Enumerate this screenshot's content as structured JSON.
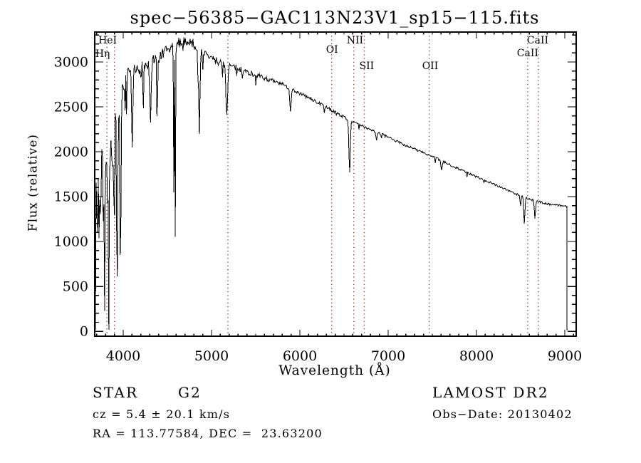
{
  "title": "spec−56385−GAC113N23V1_sp15−115.fits",
  "annotations": {
    "class_label": "STAR",
    "subclass": "G2",
    "survey": "LAMOST DR2",
    "velocity": "cz = 5.4 ± 20.1 km/s",
    "obs_date": "Obs−Date: 20130402",
    "coordinates": "RA = 113.77584, DEC =  23.63200"
  },
  "chart_data": {
    "type": "line",
    "title": "spec−56385−GAC113N23V1_sp15−115.fits",
    "xlabel": "Wavelength (Å)",
    "ylabel": "Flux (relative)",
    "xlim": [
      3677,
      9129
    ],
    "ylim": [
      -55,
      3333
    ],
    "grid": false,
    "legend": "none",
    "x_major_ticks": [
      4000,
      5000,
      6000,
      7000,
      8000,
      9000
    ],
    "x_minor_step": 100,
    "y_major_ticks": [
      0,
      500,
      1000,
      1500,
      2000,
      2500,
      3000
    ],
    "y_minor_step": 100,
    "line_color": "#000000",
    "marker_color": "#9e382c",
    "marked_lines": [
      {
        "label": "HeI",
        "wavelength": 3815,
        "label_dx": -12,
        "label_y": 61
      },
      {
        "label": "Hη",
        "wavelength": 3900,
        "label_dx": -27,
        "label_y": 80
      },
      {
        "label": "",
        "wavelength": 5185,
        "label_dx": 0,
        "label_y": 0
      },
      {
        "label": "OI",
        "wavelength": 6360,
        "label_dx": -8,
        "label_y": 74
      },
      {
        "label": "NII",
        "wavelength": 6610,
        "label_dx": -10,
        "label_y": 61
      },
      {
        "label": "SII",
        "wavelength": 6730,
        "label_dx": -7,
        "label_y": 97
      },
      {
        "label": "OII",
        "wavelength": 7465,
        "label_dx": -10,
        "label_y": 97
      },
      {
        "label": "CaII",
        "wavelength": 8580,
        "label_dx": -1,
        "label_y": 61
      },
      {
        "label": "CaII",
        "wavelength": 8700,
        "label_dx": -30,
        "label_y": 79
      }
    ],
    "spectrum": {
      "wl_start": 3685,
      "wl_end": 9022,
      "sample_step": 8,
      "flux_clip": [
        15,
        3275
      ],
      "continuum": [
        [
          3685,
          1400
        ],
        [
          3740,
          1450
        ],
        [
          3790,
          1650
        ],
        [
          3840,
          1900
        ],
        [
          3890,
          2150
        ],
        [
          3935,
          2300
        ],
        [
          3975,
          2550
        ],
        [
          4050,
          2800
        ],
        [
          4200,
          2930
        ],
        [
          4350,
          3000
        ],
        [
          4500,
          3120
        ],
        [
          4650,
          3230
        ],
        [
          4750,
          3240
        ],
        [
          4850,
          3150
        ],
        [
          4950,
          3070
        ],
        [
          5050,
          3010
        ],
        [
          5200,
          2960
        ],
        [
          5400,
          2890
        ],
        [
          5600,
          2820
        ],
        [
          5800,
          2750
        ],
        [
          6000,
          2650
        ],
        [
          6200,
          2550
        ],
        [
          6400,
          2440
        ],
        [
          6600,
          2330
        ],
        [
          6800,
          2250
        ],
        [
          7000,
          2160
        ],
        [
          7200,
          2070
        ],
        [
          7400,
          1990
        ],
        [
          7600,
          1900
        ],
        [
          7800,
          1810
        ],
        [
          8000,
          1720
        ],
        [
          8200,
          1640
        ],
        [
          8400,
          1550
        ],
        [
          8600,
          1470
        ],
        [
          8800,
          1420
        ],
        [
          9000,
          1395
        ],
        [
          9022,
          1390
        ]
      ],
      "absorption_features": [
        {
          "wavelength": 3835,
          "depth": 600,
          "sigma": 5
        },
        {
          "wavelength": 3889,
          "depth": 700,
          "sigma": 5
        },
        {
          "wavelength": 3933,
          "depth": 1750,
          "sigma": 6
        },
        {
          "wavelength": 3969,
          "depth": 1600,
          "sigma": 6
        },
        {
          "wavelength": 4102,
          "depth": 780,
          "sigma": 7
        },
        {
          "wavelength": 4227,
          "depth": 500,
          "sigma": 4
        },
        {
          "wavelength": 4308,
          "depth": 650,
          "sigma": 8
        },
        {
          "wavelength": 4384,
          "depth": 750,
          "sigma": 5
        },
        {
          "wavelength": 4573,
          "depth": 1600,
          "sigma": 3.5
        },
        {
          "wavelength": 4590,
          "depth": 2300,
          "sigma": 3
        },
        {
          "wavelength": 4861,
          "depth": 950,
          "sigma": 7
        },
        {
          "wavelength": 5172,
          "depth": 575,
          "sigma": 9
        },
        {
          "wavelength": 5893,
          "depth": 255,
          "sigma": 7
        },
        {
          "wavelength": 6563,
          "depth": 590,
          "sigma": 7
        },
        {
          "wavelength": 6868,
          "depth": 90,
          "sigma": 6
        },
        {
          "wavelength": 7605,
          "depth": 110,
          "sigma": 7
        },
        {
          "wavelength": 8498,
          "depth": 120,
          "sigma": 5
        },
        {
          "wavelength": 8542,
          "depth": 300,
          "sigma": 6
        },
        {
          "wavelength": 8662,
          "depth": 210,
          "sigma": 6
        }
      ],
      "noise_amplitude": [
        [
          3685,
          1150
        ],
        [
          3750,
          1000
        ],
        [
          3800,
          800
        ],
        [
          3860,
          550
        ],
        [
          3930,
          420
        ],
        [
          3990,
          300
        ],
        [
          4060,
          220
        ],
        [
          4200,
          170
        ],
        [
          4400,
          140
        ],
        [
          4600,
          110
        ],
        [
          4800,
          100
        ],
        [
          5000,
          85
        ],
        [
          5300,
          65
        ],
        [
          5600,
          50
        ],
        [
          6000,
          38
        ],
        [
          6500,
          30
        ],
        [
          7000,
          26
        ],
        [
          7500,
          24
        ],
        [
          8000,
          24
        ],
        [
          8500,
          22
        ],
        [
          9030,
          20
        ]
      ],
      "end_points": [
        [
          9024,
          1386
        ],
        [
          9025.5,
          15
        ],
        [
          9031,
          15
        ]
      ]
    }
  }
}
